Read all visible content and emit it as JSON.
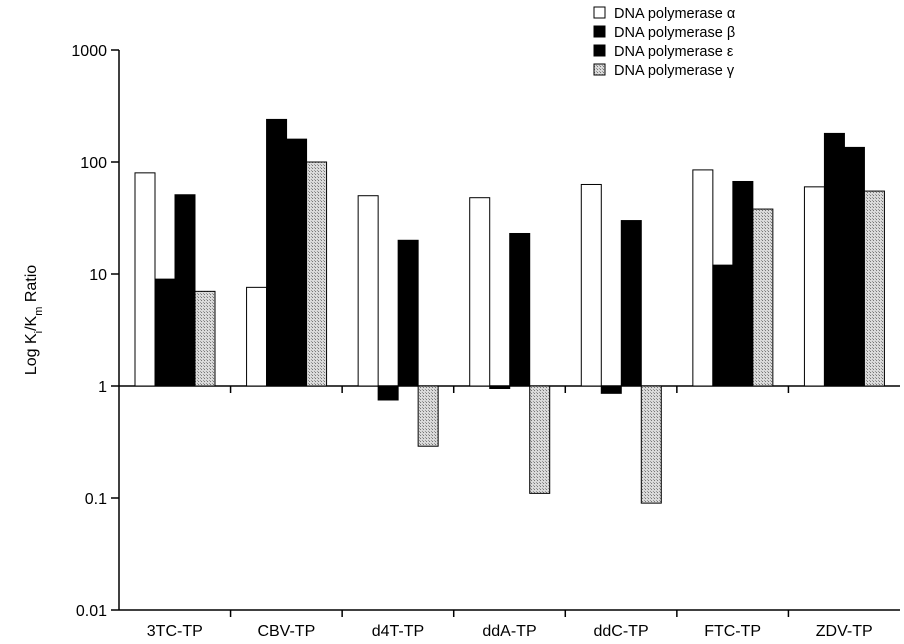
{
  "chart_data": {
    "type": "bar",
    "y_scale": "log",
    "ylim": [
      0.01,
      1000
    ],
    "baseline": 1,
    "grid": false,
    "legend_position": "top-right",
    "ylabel": {
      "main": "Log K",
      "sub1": "i",
      "mid": "/K",
      "sub2": "m",
      "tail": " Ratio"
    },
    "y_ticks": [
      "1000",
      "100",
      "10",
      "1",
      "0.1",
      "0.01"
    ],
    "y_tick_values": [
      1000,
      100,
      10,
      1,
      0.1,
      0.01
    ],
    "categories": [
      "3TC-TP",
      "CBV-TP",
      "d4T-TP",
      "ddA-TP",
      "ddC-TP",
      "FTC-TP",
      "ZDV-TP"
    ],
    "series": [
      {
        "name": "DNA polymerase α",
        "color": "#ffffff",
        "pattern": "open",
        "values": [
          80,
          7.6,
          50,
          48,
          63,
          85,
          60
        ]
      },
      {
        "name": "DNA polymerase β",
        "color": "#000000",
        "pattern": "solid",
        "values": [
          9,
          240,
          0.75,
          0.95,
          0.86,
          12,
          180
        ]
      },
      {
        "name": "DNA polymerase ε",
        "color": "#000000",
        "pattern": "solid",
        "values": [
          51,
          160,
          20,
          23,
          30,
          67,
          135
        ]
      },
      {
        "name": "DNA polymerase γ",
        "color": "#c8c8c8",
        "pattern": "stipple",
        "values": [
          7,
          100,
          0.29,
          0.11,
          0.09,
          38,
          55
        ]
      }
    ]
  }
}
